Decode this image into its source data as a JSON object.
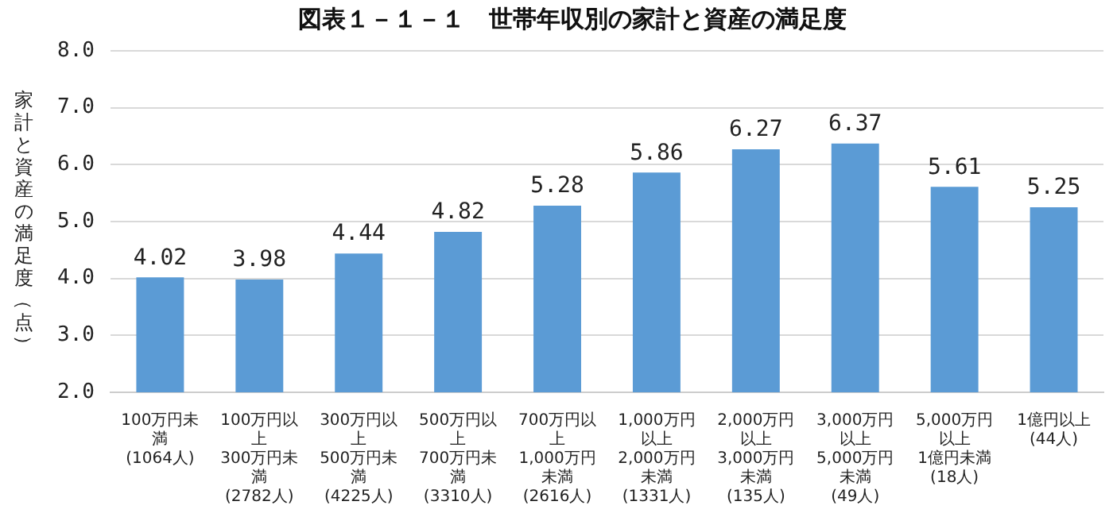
{
  "chart_data": {
    "type": "bar",
    "title": "図表１－１－１　世帯年収別の家計と資産の満足度",
    "ylabel": "家計と資産の満足度（点）",
    "categories": [
      "100万円未満\n(1064人)",
      "100万円以上\n300万円未満\n(2782人)",
      "300万円以上\n500万円未満\n(4225人)",
      "500万円以上\n700万円未満\n(3310人)",
      "700万円以上\n1,000万円未満\n(2616人)",
      "1,000万円以上\n2,000万円未満\n(1331人)",
      "2,000万円以上\n3,000万円未満\n(135人)",
      "3,000万円以上\n5,000万円未満\n(49人)",
      "5,000万円以上\n1億円未満\n(18人)",
      "1億円以上\n(44人)"
    ],
    "values": [
      4.02,
      3.98,
      4.44,
      4.82,
      5.28,
      5.86,
      6.27,
      6.37,
      5.61,
      5.25
    ],
    "color": "#5b9bd5",
    "data_labels": true,
    "grid": "y",
    "legend": false,
    "ylim": [
      2.0,
      8.0
    ],
    "yticks": [
      {
        "value": 2,
        "label": "2.0"
      },
      {
        "value": 3,
        "label": "3.0"
      },
      {
        "value": 4,
        "label": "4.0"
      },
      {
        "value": 5,
        "label": "5.0"
      },
      {
        "value": 6,
        "label": "6.0"
      },
      {
        "value": 7,
        "label": "7.0"
      },
      {
        "value": 8,
        "label": "8.0"
      }
    ]
  }
}
